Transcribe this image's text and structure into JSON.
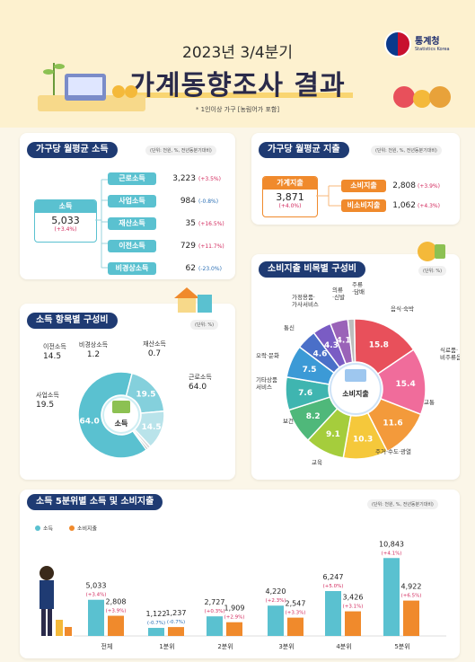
{
  "header": {
    "subtitle": "2023년 3/4분기",
    "title": "가계동향조사 결과",
    "note": "* 1인이상 가구 [농림어가 포함]",
    "org_name": "통계청",
    "org_en": "Statistics Korea"
  },
  "income": {
    "title": "가구당 월평균 소득",
    "unit": "(단위: 천원, %, 전년동분기대비)",
    "total": {
      "label": "소득",
      "value": "5,033",
      "change": "(+3.4%)"
    },
    "items": [
      {
        "label": "근로소득",
        "value": "3,223",
        "change": "(+3.5%)"
      },
      {
        "label": "사업소득",
        "value": "984",
        "change": "(-0.8%)"
      },
      {
        "label": "재산소득",
        "value": "35",
        "change": "(+16.5%)"
      },
      {
        "label": "이전소득",
        "value": "729",
        "change": "(+11.7%)"
      },
      {
        "label": "비경상소득",
        "value": "62",
        "change": "(-23.0%)"
      }
    ]
  },
  "expense": {
    "title": "가구당 월평균 지출",
    "unit": "(단위: 천원, %, 전년동분기대비)",
    "total": {
      "label": "가계지출",
      "value": "3,871",
      "change": "(+4.0%)"
    },
    "items": [
      {
        "label": "소비지출",
        "value": "2,808",
        "change": "(+3.9%)"
      },
      {
        "label": "비소비지출",
        "value": "1,062",
        "change": "(+4.3%)"
      }
    ]
  },
  "colors": {
    "navy": "#1f3b73",
    "teal": "#5ac1d0",
    "orange": "#f08a2c",
    "up": "#d2295d",
    "down": "#2b6fb5"
  },
  "chart_data": [
    {
      "type": "pie",
      "title": "소득 항목별 구성비",
      "unit": "(단위: %)",
      "center_label": "소득",
      "categories": [
        "근로소득",
        "사업소득",
        "이전소득",
        "비경상소득",
        "재산소득"
      ],
      "values": [
        64.0,
        19.5,
        14.5,
        1.2,
        0.7
      ],
      "labels": [
        "64.0",
        "19.5",
        "14.5",
        "1.2",
        "0.7"
      ],
      "colors": [
        "#5ac1d0",
        "#84d0dc",
        "#b9e3ea",
        "#dcdcdc",
        "#888888"
      ]
    },
    {
      "type": "pie",
      "title": "소비지출 비목별 구성비",
      "unit": "(단위: %)",
      "center_label": "소비지출",
      "categories": [
        "음식·숙박",
        "식료품·비주류음료",
        "교통",
        "주거·수도·광열",
        "교육",
        "보건",
        "기타상품서비스",
        "오락·문화",
        "통신",
        "가정용품·가사서비스",
        "의류·신발",
        "주류·담배"
      ],
      "values": [
        15.8,
        15.4,
        11.6,
        10.3,
        9.1,
        8.2,
        7.6,
        7.5,
        4.6,
        4.3,
        4.1,
        1.5
      ],
      "labels": [
        "15.8",
        "15.4",
        "11.6",
        "10.3",
        "9.1",
        "8.2",
        "7.6",
        "7.5",
        "4.6",
        "4.3",
        "4.1",
        "1.5"
      ],
      "colors": [
        "#e8505b",
        "#f06c9b",
        "#f39a3b",
        "#f5c83b",
        "#a5cd3c",
        "#4fb87a",
        "#3fb5b0",
        "#3c9ad6",
        "#4a6fc8",
        "#7a5cc4",
        "#9a63b8",
        "#bdbdbd"
      ]
    },
    {
      "type": "bar",
      "title": "소득 5분위별 소득 및 소비지출",
      "unit": "(단위: 천원, %, 전년동분기대비)",
      "categories": [
        "전체",
        "1분위",
        "2분위",
        "3분위",
        "4분위",
        "5분위"
      ],
      "series": [
        {
          "name": "소득",
          "values": [
            5033,
            1122,
            2727,
            4220,
            6247,
            10843
          ],
          "labels": [
            "5,033",
            "1,122",
            "2,727",
            "4,220",
            "6,247",
            "10,843"
          ],
          "changes": [
            "(+3.4%)",
            "(-0.7%)",
            "(+0.3%)",
            "(+2.3%)",
            "(+5.0%)",
            "(+4.1%)"
          ]
        },
        {
          "name": "소비지출",
          "values": [
            2808,
            1237,
            1909,
            2547,
            3426,
            4922
          ],
          "labels": [
            "2,808",
            "1,237",
            "1,909",
            "2,547",
            "3,426",
            "4,922"
          ],
          "changes": [
            "(+3.9%)",
            "(-0.7%)",
            "(+2.9%)",
            "(+3.3%)",
            "(+3.1%)",
            "(+6.5%)"
          ]
        }
      ]
    }
  ]
}
